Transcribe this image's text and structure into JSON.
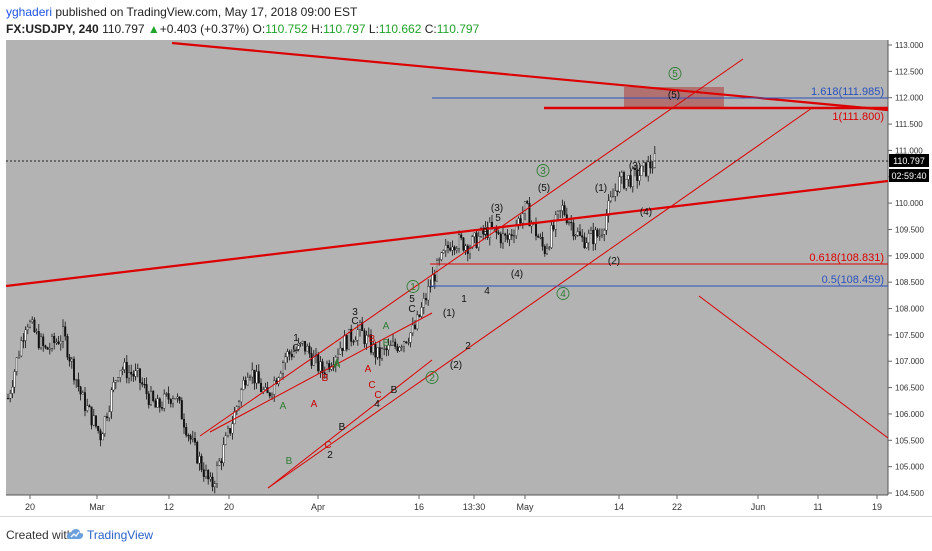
{
  "header": {
    "user": "yghaderi",
    "published_text": "published on TradingView.com, May 17, 2018 09:00 EST",
    "symbol": "FX:USDJPY, 240",
    "last": "110.797",
    "arrow": "▲",
    "change": "+0.403 (+0.37%)",
    "o_label": "O:",
    "o": "110.752",
    "h_label": "H:",
    "h": "110.797",
    "l_label": "L:",
    "l": "110.662",
    "c_label": "C:",
    "c": "110.797"
  },
  "footer": {
    "created_with": "Created with",
    "brand": "TradingView",
    "logo_icon": "tradingview-cloud-icon"
  },
  "colors": {
    "background": "#b3b3b3",
    "candle": "#111111",
    "trendline": "#dd0000",
    "fib_blue": "#2a52be",
    "fib_red": "#dd0000",
    "wave_green": "#2e7d32",
    "wave_red": "#cc0000",
    "price_badge": "#000000"
  },
  "chart_data": {
    "type": "candlestick",
    "symbol": "FX:USDJPY",
    "timeframe": "240",
    "ylim": [
      104.5,
      113.0
    ],
    "y_ticks": [
      "104.500",
      "105.000",
      "105.500",
      "106.000",
      "106.500",
      "107.000",
      "107.500",
      "108.000",
      "108.500",
      "109.000",
      "109.500",
      "110.000",
      "110.500",
      "111.000",
      "111.500",
      "112.000",
      "112.500",
      "113.000"
    ],
    "x_tick_labels": [
      "20",
      "Mar",
      "12",
      "20",
      "Apr",
      "16",
      "13:30",
      "May",
      "14",
      "22",
      "Jun",
      "11",
      "19"
    ],
    "price_series": {
      "x": [
        "Feb 16",
        "Feb 20",
        "Feb 23",
        "Feb 27",
        "Mar 1",
        "Mar 5",
        "Mar 8",
        "Mar 12",
        "Mar 15",
        "Mar 19",
        "Mar 22",
        "Mar 26",
        "Mar 28",
        "Mar 29",
        "Apr 2",
        "Apr 4",
        "Apr 6",
        "Apr 9",
        "Apr 11",
        "Apr 13",
        "Apr 16",
        "Apr 18",
        "Apr 20",
        "Apr 23",
        "Apr 25",
        "Apr 27",
        "May 1",
        "May 3",
        "May 4",
        "May 7",
        "May 9",
        "May 11",
        "May 14",
        "May 15",
        "May 16",
        "May 17"
      ],
      "close": [
        106.3,
        107.8,
        107.2,
        107.5,
        106.3,
        105.6,
        106.9,
        106.7,
        106.1,
        106.4,
        105.4,
        104.6,
        105.7,
        106.9,
        106.3,
        107.1,
        107.3,
        106.8,
        107.3,
        107.6,
        107.1,
        107.3,
        107.6,
        108.6,
        109.3,
        109.2,
        109.5,
        109.3,
        109.9,
        109.1,
        109.9,
        109.3,
        109.4,
        110.4,
        110.5,
        110.797
      ]
    },
    "price_labels": [
      "110.797",
      "02:59:40"
    ],
    "horizontal_levels": [
      {
        "label": "1.618(111.985)",
        "value": 111.985,
        "color": "blue"
      },
      {
        "label": "1(111.800)",
        "value": 111.8,
        "color": "red"
      },
      {
        "label": "0.618(108.831)",
        "value": 108.831,
        "color": "red"
      },
      {
        "label": "0.5(108.459)",
        "value": 108.459,
        "color": "blue"
      }
    ],
    "wave_labels": [
      {
        "text": "1",
        "color": "black"
      },
      {
        "text": "C",
        "color": "black"
      },
      {
        "text": "A",
        "color": "green"
      },
      {
        "text": "B",
        "color": "green"
      },
      {
        "text": "B",
        "color": "red"
      },
      {
        "text": "A",
        "color": "red"
      },
      {
        "text": "C",
        "color": "red"
      },
      {
        "text": "A",
        "color": "green"
      },
      {
        "text": "2",
        "color": "black"
      },
      {
        "text": "B",
        "color": "black"
      },
      {
        "text": "C",
        "color": "red"
      },
      {
        "text": "3",
        "color": "black"
      },
      {
        "text": "C",
        "color": "black"
      },
      {
        "text": "A",
        "color": "green"
      },
      {
        "text": "B",
        "color": "red"
      },
      {
        "text": "A",
        "color": "red"
      },
      {
        "text": "B",
        "color": "green"
      },
      {
        "text": "C",
        "color": "red"
      },
      {
        "text": "4",
        "color": "black"
      },
      {
        "text": "A",
        "color": "green"
      },
      {
        "text": "B",
        "color": "black"
      },
      {
        "text": "1",
        "color": "green-circle"
      },
      {
        "text": "5",
        "color": "black"
      },
      {
        "text": "C",
        "color": "black"
      },
      {
        "text": "(1)",
        "color": "black"
      },
      {
        "text": "2",
        "color": "green-circle"
      },
      {
        "text": "(2)",
        "color": "black"
      },
      {
        "text": "1",
        "color": "black"
      },
      {
        "text": "2",
        "color": "black"
      },
      {
        "text": "3",
        "color": "black"
      },
      {
        "text": "4",
        "color": "black"
      },
      {
        "text": "(3)",
        "color": "black"
      },
      {
        "text": "5",
        "color": "black"
      },
      {
        "text": "(4)",
        "color": "black"
      },
      {
        "text": "3",
        "color": "green-circle"
      },
      {
        "text": "(5)",
        "color": "black"
      },
      {
        "text": "4",
        "color": "green-circle"
      },
      {
        "text": "(1)",
        "color": "black"
      },
      {
        "text": "(2)",
        "color": "black"
      },
      {
        "text": "(3)",
        "color": "black"
      },
      {
        "text": "(4)",
        "color": "black"
      },
      {
        "text": "5",
        "color": "green-circle"
      },
      {
        "text": "(5)",
        "color": "black"
      }
    ],
    "grid": false,
    "legend": "none"
  }
}
